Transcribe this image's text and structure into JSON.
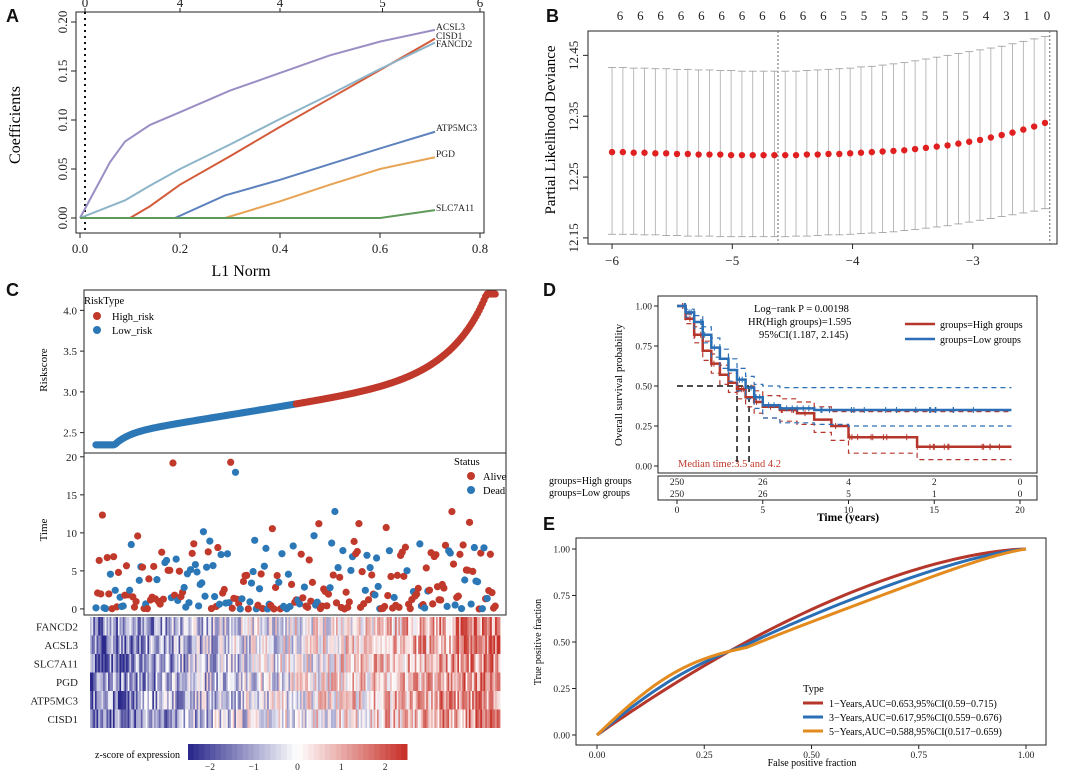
{
  "panel_letters": [
    "A",
    "B",
    "C",
    "D",
    "E"
  ],
  "colors": {
    "red": "#C0392B",
    "blue": "#2C78B7",
    "purple": "#9B8EC4",
    "orange_red": "#D35C3A",
    "light_blue": "#8DB4C8",
    "steel_blue": "#5E82BE",
    "orange": "#E8A455",
    "green": "#5E9A5A",
    "km_red": "#B5362A",
    "km_blue": "#2A6FB5",
    "roc_orange": "#E38B1E",
    "heat_low": "#2B2A8C",
    "heat_mid": "#FFFFFF",
    "heat_high": "#C8332B"
  },
  "chart_data": [
    {
      "panel": "A",
      "type": "line",
      "title": "",
      "xlabel": "L1 Norm",
      "ylabel": "Coefficients",
      "xlim": [
        0,
        0.8
      ],
      "ylim": [
        0,
        0.2
      ],
      "x_ticks": [
        "0.0",
        "0.2",
        "0.4",
        "0.6",
        "0.8"
      ],
      "y_ticks": [
        "0.00",
        "0.05",
        "0.10",
        "0.15",
        "0.20"
      ],
      "top_axis_ticks": [
        "0",
        "4",
        "4",
        "5",
        "6"
      ],
      "top_axis_positions": [
        0.01,
        0.2,
        0.4,
        0.605,
        0.8
      ],
      "vline_x": 0.01,
      "series": [
        {
          "name": "ACSL3",
          "color_key": "purple",
          "x": [
            0.0,
            0.06,
            0.09,
            0.14,
            0.2,
            0.3,
            0.4,
            0.5,
            0.6,
            0.71
          ],
          "y": [
            0.0,
            0.057,
            0.078,
            0.095,
            0.108,
            0.13,
            0.148,
            0.166,
            0.18,
            0.192
          ]
        },
        {
          "name": "CISD1",
          "color_key": "orange_red",
          "x": [
            0.0,
            0.1,
            0.14,
            0.2,
            0.3,
            0.4,
            0.5,
            0.6,
            0.71
          ],
          "y": [
            0.0,
            0.0,
            0.012,
            0.034,
            0.063,
            0.093,
            0.122,
            0.151,
            0.183
          ]
        },
        {
          "name": "FANCD2",
          "color_key": "light_blue",
          "x": [
            0.0,
            0.09,
            0.14,
            0.2,
            0.3,
            0.4,
            0.5,
            0.6,
            0.71
          ],
          "y": [
            0.0,
            0.018,
            0.033,
            0.05,
            0.075,
            0.101,
            0.126,
            0.152,
            0.179
          ]
        },
        {
          "name": "ATP5MC3",
          "color_key": "steel_blue",
          "x": [
            0.0,
            0.19,
            0.29,
            0.4,
            0.5,
            0.6,
            0.71
          ],
          "y": [
            0.0,
            0.0,
            0.023,
            0.039,
            0.055,
            0.071,
            0.088
          ]
        },
        {
          "name": "PGD",
          "color_key": "orange",
          "x": [
            0.0,
            0.29,
            0.4,
            0.5,
            0.6,
            0.71
          ],
          "y": [
            0.0,
            0.0,
            0.017,
            0.034,
            0.05,
            0.062
          ]
        },
        {
          "name": "SLC7A11",
          "color_key": "green",
          "x": [
            0.0,
            0.6,
            0.71
          ],
          "y": [
            0.0,
            0.0,
            0.008
          ]
        }
      ]
    },
    {
      "panel": "B",
      "type": "scatter",
      "title": "",
      "xlabel": "",
      "ylabel": "Partial Likelihood Deviance",
      "xlim": [
        -6.2,
        -2.3
      ],
      "ylim": [
        12.14,
        12.49
      ],
      "x_ticks": [
        "-6",
        "-5",
        "-4",
        "-3"
      ],
      "y_ticks": [
        "12.15",
        "12.25",
        "12.35",
        "12.45"
      ],
      "top_axis_ticks": [
        "6",
        "6",
        "6",
        "6",
        "6",
        "6",
        "6",
        "6",
        "6",
        "6",
        "6",
        "5",
        "5",
        "5",
        "5",
        "5",
        "5",
        "5",
        "4",
        "3",
        "1",
        "0"
      ],
      "vlines": [
        -4.62,
        -2.36
      ],
      "points": {
        "x": [
          -6.0,
          -5.91,
          -5.82,
          -5.73,
          -5.64,
          -5.55,
          -5.46,
          -5.37,
          -5.28,
          -5.19,
          -5.1,
          -5.01,
          -4.92,
          -4.83,
          -4.74,
          -4.65,
          -4.56,
          -4.47,
          -4.38,
          -4.29,
          -4.2,
          -4.11,
          -4.02,
          -3.93,
          -3.84,
          -3.75,
          -3.66,
          -3.57,
          -3.48,
          -3.39,
          -3.3,
          -3.21,
          -3.12,
          -3.03,
          -2.94,
          -2.85,
          -2.76,
          -2.67,
          -2.58,
          -2.49,
          -2.4
        ],
        "y": [
          12.291,
          12.291,
          12.29,
          12.29,
          12.289,
          12.289,
          12.288,
          12.288,
          12.287,
          12.287,
          12.287,
          12.286,
          12.286,
          12.286,
          12.286,
          12.286,
          12.286,
          12.286,
          12.287,
          12.287,
          12.288,
          12.288,
          12.289,
          12.29,
          12.291,
          12.292,
          12.293,
          12.294,
          12.296,
          12.298,
          12.3,
          12.302,
          12.305,
          12.308,
          12.311,
          12.315,
          12.319,
          12.323,
          12.328,
          12.333,
          12.339
        ],
        "upper": [
          12.43,
          12.43,
          12.429,
          12.429,
          12.428,
          12.428,
          12.427,
          12.427,
          12.426,
          12.426,
          12.425,
          12.425,
          12.424,
          12.424,
          12.424,
          12.424,
          12.424,
          12.424,
          12.425,
          12.426,
          12.427,
          12.428,
          12.429,
          12.431,
          12.432,
          12.434,
          12.436,
          12.438,
          12.441,
          12.444,
          12.447,
          12.45,
          12.453,
          12.456,
          12.459,
          12.462,
          12.465,
          12.469,
          12.473,
          12.477,
          12.481
        ],
        "lower": [
          12.156,
          12.156,
          12.156,
          12.155,
          12.155,
          12.154,
          12.154,
          12.153,
          12.153,
          12.153,
          12.152,
          12.152,
          12.152,
          12.152,
          12.152,
          12.152,
          12.152,
          12.153,
          12.153,
          12.154,
          12.155,
          12.155,
          12.156,
          12.157,
          12.158,
          12.159,
          12.16,
          12.162,
          12.164,
          12.166,
          12.168,
          12.17,
          12.173,
          12.176,
          12.179,
          12.182,
          12.185,
          12.188,
          12.191,
          12.194,
          12.198
        ]
      }
    },
    {
      "panel": "C-top",
      "type": "scatter",
      "title": "",
      "ylabel": "Riskscore",
      "ylim": [
        2.25,
        4.25
      ],
      "y_ticks": [
        "2.5",
        "3.0",
        "3.5",
        "4.0"
      ],
      "legend_title": "RiskType",
      "legend": [
        "High_risk",
        "Low_risk"
      ],
      "n_samples": 500,
      "split_index": 250,
      "curve": {
        "min": 2.35,
        "max": 4.2
      }
    },
    {
      "panel": "C-middle",
      "type": "scatter",
      "ylabel": "Time",
      "ylim": [
        -0.8,
        20.5
      ],
      "y_ticks": [
        "0",
        "5",
        "10",
        "15",
        "20"
      ],
      "legend_title": "Status",
      "legend": [
        "Alive",
        "Dead"
      ],
      "n_samples": 500
    },
    {
      "panel": "C-bottom",
      "type": "heatmap",
      "rows": [
        "FANCD2",
        "ACSL3",
        "SLC7A11",
        "PGD",
        "ATP5MC3",
        "CISD1"
      ],
      "colorbar_label": "z-score of expression",
      "colorbar_ticks": [
        "−2",
        "−1",
        "0",
        "1",
        "2"
      ]
    },
    {
      "panel": "D",
      "type": "line",
      "xlabel": "Time (years)",
      "ylabel": "Overall survival probability",
      "xlim": [
        0,
        20
      ],
      "ylim": [
        0,
        1
      ],
      "x_ticks": [
        "0",
        "5",
        "10",
        "15",
        "20"
      ],
      "y_ticks": [
        "0.00",
        "0.25",
        "0.50",
        "0.75",
        "1.00"
      ],
      "annotations": [
        "Log−rank P = 0.00198",
        "HR(High groups)=1.595",
        "95%CI(1.187, 2.145)"
      ],
      "median_text": "Median time:3.5 and 4.2",
      "legend": [
        "groups=High groups",
        "groups=Low groups"
      ],
      "series": [
        {
          "name": "groups=High groups",
          "color_key": "km_red",
          "x": [
            0,
            0.5,
            1,
            1.5,
            2,
            2.5,
            3,
            3.5,
            4,
            4.5,
            5,
            6,
            7,
            8,
            9,
            10,
            11,
            12,
            13.5,
            14,
            19.5
          ],
          "y": [
            1.0,
            0.92,
            0.82,
            0.72,
            0.64,
            0.57,
            0.52,
            0.48,
            0.43,
            0.4,
            0.37,
            0.35,
            0.33,
            0.29,
            0.25,
            0.18,
            0.18,
            0.18,
            0.18,
            0.12,
            0.12
          ],
          "upper": [
            1.0,
            0.95,
            0.87,
            0.78,
            0.7,
            0.63,
            0.58,
            0.54,
            0.5,
            0.47,
            0.44,
            0.42,
            0.4,
            0.37,
            0.34,
            0.34,
            0.34,
            0.34,
            0.34,
            0.34,
            0.34
          ],
          "lower": [
            1.0,
            0.89,
            0.77,
            0.66,
            0.58,
            0.51,
            0.46,
            0.42,
            0.37,
            0.33,
            0.3,
            0.28,
            0.26,
            0.21,
            0.16,
            0.08,
            0.08,
            0.08,
            0.08,
            0.04,
            0.04
          ]
        },
        {
          "name": "groups=Low groups",
          "color_key": "km_blue",
          "x": [
            0,
            0.5,
            1,
            1.5,
            2,
            2.5,
            3,
            3.5,
            4,
            4.5,
            5,
            6,
            8,
            10,
            14,
            19.5
          ],
          "y": [
            1.0,
            0.96,
            0.9,
            0.82,
            0.74,
            0.67,
            0.6,
            0.54,
            0.49,
            0.43,
            0.38,
            0.36,
            0.35,
            0.35,
            0.35,
            0.35
          ],
          "upper": [
            1.0,
            0.98,
            0.94,
            0.87,
            0.8,
            0.73,
            0.67,
            0.61,
            0.56,
            0.51,
            0.5,
            0.49,
            0.49,
            0.49,
            0.49,
            0.49
          ],
          "lower": [
            1.0,
            0.93,
            0.86,
            0.77,
            0.68,
            0.61,
            0.53,
            0.47,
            0.42,
            0.36,
            0.3,
            0.27,
            0.26,
            0.25,
            0.25,
            0.25
          ]
        }
      ],
      "risk_table": {
        "rows": [
          "groups=High groups",
          "groups=Low groups"
        ],
        "values": [
          [
            "250",
            "26",
            "4",
            "2",
            "0"
          ],
          [
            "250",
            "26",
            "5",
            "1",
            "0"
          ]
        ]
      }
    },
    {
      "panel": "E",
      "type": "line",
      "xlabel": "False positive fraction",
      "ylabel": "True positive fraction",
      "xlim": [
        0,
        1
      ],
      "ylim": [
        0,
        1
      ],
      "x_ticks": [
        "0.00",
        "0.25",
        "0.50",
        "0.75",
        "1.00"
      ],
      "y_ticks": [
        "0.00",
        "0.25",
        "0.50",
        "0.75",
        "1.00"
      ],
      "legend_title": "Type",
      "series": [
        {
          "name": "1−Years,AUC=0.653,95%CI(0.59−0.715)",
          "color_key": "km_red",
          "auc": 0.653
        },
        {
          "name": "3−Years,AUC=0.617,95%CI(0.559−0.676)",
          "color_key": "km_blue",
          "auc": 0.617
        },
        {
          "name": "5−Years,AUC=0.588,95%CI(0.517−0.659)",
          "color_key": "roc_orange",
          "auc": 0.588
        }
      ]
    }
  ]
}
